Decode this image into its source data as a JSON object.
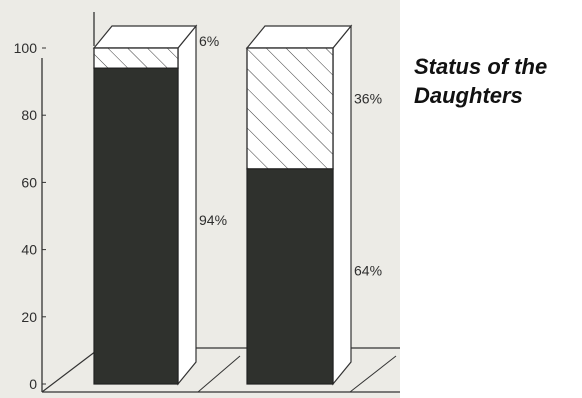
{
  "chart_data": {
    "type": "bar",
    "title": "Status of the\nDaughters",
    "categories": [
      "",
      ""
    ],
    "series": [
      {
        "values": [
          94,
          64
        ],
        "pattern": "solid",
        "color": "#2f312d"
      },
      {
        "values": [
          6,
          36
        ],
        "pattern": "hatched",
        "color": "#ffffff"
      }
    ],
    "bar_labels": [
      {
        "top": "6%",
        "bottom": "94%"
      },
      {
        "top": "36%",
        "bottom": "64%"
      }
    ],
    "ylim": [
      0,
      100
    ],
    "yticks": [
      "0",
      "20",
      "40",
      "60",
      "80",
      "100"
    ],
    "stacked": true,
    "three_d": true,
    "grid": false,
    "legend": "none"
  }
}
